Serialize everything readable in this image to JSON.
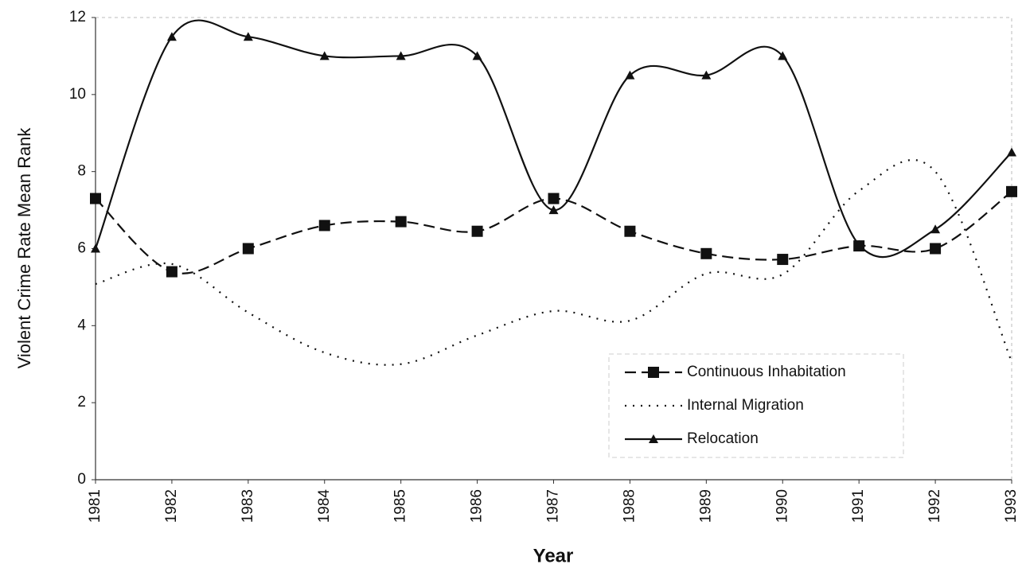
{
  "chart_data": {
    "type": "line",
    "x_label": "Year",
    "y_label": "Violent Crime Rate Mean Rank",
    "categories": [
      "1981",
      "1982",
      "1983",
      "1984",
      "1985",
      "1986",
      "1987",
      "1988",
      "1989",
      "1990",
      "1991",
      "1992",
      "1993"
    ],
    "series": [
      {
        "name": "Continuous Inhabitation",
        "color": "#111111",
        "style": "dashed",
        "marker": "square",
        "values": [
          7.3,
          5.4,
          6.0,
          6.6,
          6.7,
          6.45,
          7.3,
          6.45,
          5.87,
          5.72,
          6.07,
          6.0,
          7.48
        ]
      },
      {
        "name": "Internal Migration",
        "color": "#111111",
        "style": "dotted",
        "marker": "none",
        "values": [
          5.08,
          5.6,
          4.34,
          3.3,
          3.0,
          3.75,
          4.38,
          4.13,
          5.35,
          5.33,
          7.5,
          8.0,
          3.06
        ]
      },
      {
        "name": "Relocation",
        "color": "#111111",
        "style": "solid",
        "marker": "triangle",
        "values": [
          6.0,
          11.5,
          11.5,
          11.0,
          11.0,
          11.0,
          7.0,
          10.5,
          10.5,
          11.0,
          6.1,
          6.5,
          8.5
        ]
      }
    ],
    "ylim": [
      0,
      12
    ],
    "yticks": [
      0,
      2,
      4,
      6,
      8,
      10,
      12
    ],
    "smooth": true,
    "legend": "lower right"
  }
}
